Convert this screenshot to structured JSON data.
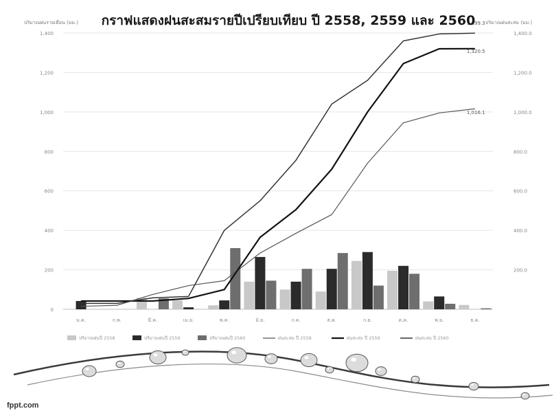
{
  "chart_data": {
    "type": "bar+line",
    "title": "กราฟแสดงฝนสะสมรายปีเปรียบเทียบ ปี 2558, 2559 และ 2560",
    "ylabel_left": "ปริมาณฝนรายเดือน (มม.)",
    "ylabel_right": "ปริมาณฝนสะสม (มม.)",
    "left_ticks": [
      "0",
      "200",
      "400",
      "600",
      "800",
      "1,000",
      "1,200",
      "1,400"
    ],
    "right_ticks": [
      "",
      "200.0",
      "400.0",
      "600.0",
      "800.0",
      "1,000.0",
      "1,200.0",
      "1,400.0"
    ],
    "ylim": [
      0,
      1400
    ],
    "categories": [
      "ม.ค.",
      "ก.พ.",
      "มี.ค.",
      "เม.ย.",
      "พ.ค.",
      "มิ.ย.",
      "ก.ค.",
      "ส.ค.",
      "ก.ย.",
      "ต.ค.",
      "พ.ย.",
      "ธ.ค."
    ],
    "bar_series": [
      {
        "name": "ปริมาณฝนปี 2558",
        "color": "#c8c8c8",
        "values": [
          0,
          0,
          58,
          45,
          20,
          140,
          100,
          90,
          245,
          195,
          40,
          22
        ]
      },
      {
        "name": "ปริมาณฝนปี 2559",
        "color": "#2b2b2b",
        "values": [
          42,
          0,
          0,
          10,
          45,
          265,
          140,
          205,
          290,
          220,
          65,
          0
        ]
      },
      {
        "name": "ปริมาณฝนปี 2560",
        "color": "#6e6e6e",
        "values": [
          0,
          0,
          55,
          0,
          310,
          145,
          205,
          285,
          120,
          180,
          28,
          5
        ]
      }
    ],
    "line_series": [
      {
        "name": "ฝนสะสม ปี 2558",
        "color": "#555555",
        "width": 1.2,
        "values": [
          15,
          20,
          75,
          120,
          145,
          285,
          385,
          480,
          740,
          945,
          995,
          1016.1
        ]
      },
      {
        "name": "ฝนสะสม ปี 2559",
        "color": "#111111",
        "width": 2.2,
        "values": [
          42,
          42,
          42,
          55,
          100,
          365,
          505,
          710,
          1000,
          1245,
          1320,
          1320.5
        ]
      },
      {
        "name": "ฝนสะสม ปี 2560",
        "color": "#333333",
        "width": 1.5,
        "values": [
          30,
          30,
          58,
          65,
          400,
          550,
          755,
          1040,
          1160,
          1360,
          1395,
          1399.3
        ]
      }
    ],
    "end_labels": [
      "1,399.3",
      "1,320.5",
      "1,016.1"
    ],
    "grid": true,
    "legend_position": "bottom"
  },
  "footer": {
    "brand": "fppt.com"
  }
}
